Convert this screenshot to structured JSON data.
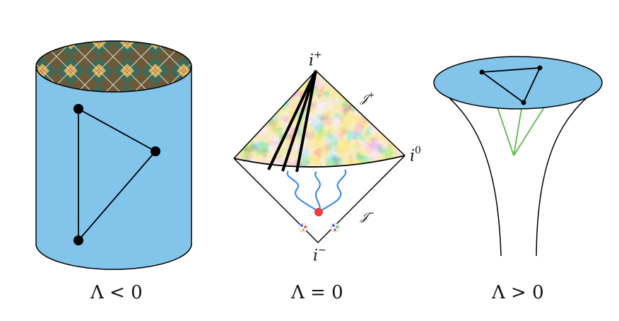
{
  "panels": {
    "ads": {
      "caption": "Λ < 0"
    },
    "flat": {
      "caption": "Λ = 0",
      "future_timelike_infinity": {
        "base": "i",
        "sup": "+"
      },
      "past_timelike_infinity": {
        "base": "i",
        "sup": "−"
      },
      "spatial_infinity": {
        "base": "i",
        "sup": "0"
      },
      "future_null_infinity": {
        "base": "𝒥",
        "sup": "+"
      },
      "past_null_infinity": {
        "base": "𝒥",
        "sup": "−"
      }
    },
    "ds": {
      "caption": "Λ > 0"
    }
  },
  "colors": {
    "cmb_red": "#c0352a",
    "cmb_orange": "#e8913a",
    "cmb_yellow": "#f2d46b",
    "cmb_blue": "#3c8fd0",
    "cmb_cyan": "#8fd0e6",
    "wave_blue": "#3f8ee8",
    "vertex_red": "#e8403a",
    "geodesic_green": "#5ab84a",
    "line_black": "#000000"
  }
}
